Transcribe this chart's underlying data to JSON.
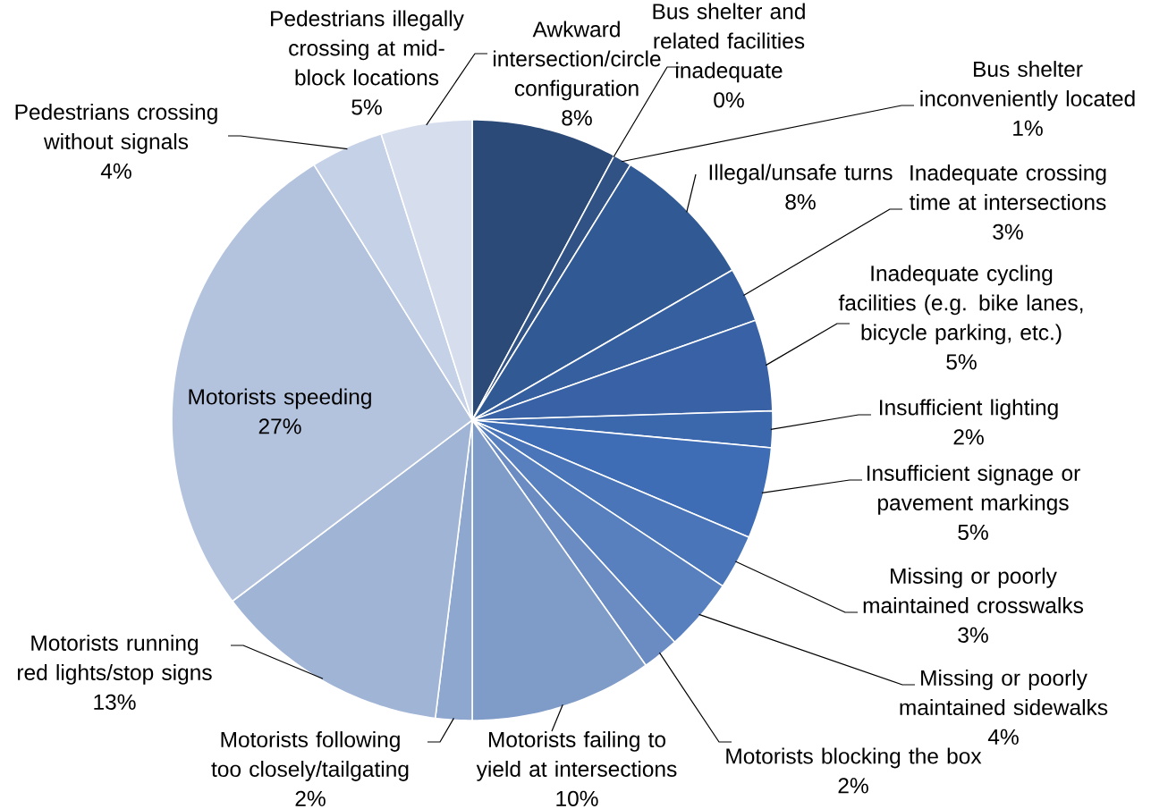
{
  "chart_data": {
    "type": "pie",
    "categories": [
      "Awkward intersection/circle configuration",
      "Bus shelter and related facilities inadequate",
      "Bus shelter inconveniently located",
      "Illegal/unsafe turns",
      "Inadequate crossing time at intersections",
      "Inadequate cycling facilities (e.g. bike lanes, bicycle parking, etc.)",
      "Insufficient lighting",
      "Insufficient signage or pavement markings",
      "Missing or poorly maintained crosswalks",
      "Missing or poorly maintained sidewalks",
      "Motorists blocking the box",
      "Motorists failing to yield at intersections",
      "Motorists following too closely/tailgating",
      "Motorists running red lights/stop signs",
      "Motorists speeding",
      "Pedestrians crossing without signals",
      "Pedestrians illegally crossing at mid-block locations"
    ],
    "values": [
      8,
      0,
      1,
      8,
      3,
      5,
      2,
      5,
      3,
      4,
      2,
      10,
      2,
      13,
      27,
      4,
      5
    ],
    "value_labels": [
      "8%",
      "0%",
      "1%",
      "8%",
      "3%",
      "5%",
      "2%",
      "5%",
      "3%",
      "4%",
      "2%",
      "10%",
      "2%",
      "13%",
      "27%",
      "4%",
      "5%"
    ],
    "colors": [
      "#2c4a78",
      "#2e4e80",
      "#305285",
      "#315a95",
      "#355f9e",
      "#3862a5",
      "#3b67ad",
      "#3f6db5",
      "#4a76b9",
      "#5880be",
      "#6a8cc3",
      "#7f9bc8",
      "#8ea7cf",
      "#a0b4d6",
      "#b3c3de",
      "#c5d1e6",
      "#d6deee"
    ]
  }
}
